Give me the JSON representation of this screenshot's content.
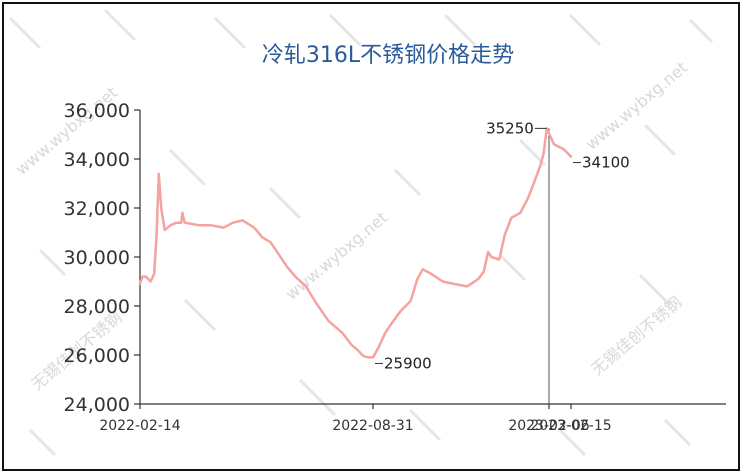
{
  "chart_data": {
    "type": "line",
    "title": "冷轧316L不锈钢价格走势",
    "xlabel": "",
    "ylabel": "",
    "ylim": [
      24000,
      36000
    ],
    "y_ticks": [
      "24,000",
      "26,000",
      "28,000",
      "30,000",
      "32,000",
      "34,000",
      "36,000"
    ],
    "x_ticks": [
      "2022-02-14",
      "2022-08-31",
      "2023-02-06",
      "2023-02-15"
    ],
    "grid": false,
    "line_color": "#f4a3a0",
    "series": [
      {
        "points": [
          [
            "2022-02-14",
            28900
          ],
          [
            "2022-02-16",
            29200
          ],
          [
            "2022-02-19",
            29200
          ],
          [
            "2022-02-23",
            29000
          ],
          [
            "2022-02-26",
            29300
          ],
          [
            "2022-02-28",
            30800
          ],
          [
            "2022-03-02",
            33400
          ],
          [
            "2022-03-04",
            32000
          ],
          [
            "2022-03-07",
            31100
          ],
          [
            "2022-03-12",
            31300
          ],
          [
            "2022-03-17",
            31400
          ],
          [
            "2022-03-21",
            31400
          ],
          [
            "2022-03-22",
            31800
          ],
          [
            "2022-03-24",
            31400
          ],
          [
            "2022-04-05",
            31300
          ],
          [
            "2022-04-15",
            31300
          ],
          [
            "2022-04-26",
            31200
          ],
          [
            "2022-05-04",
            31400
          ],
          [
            "2022-05-12",
            31500
          ],
          [
            "2022-05-22",
            31200
          ],
          [
            "2022-05-29",
            30800
          ],
          [
            "2022-06-05",
            30600
          ],
          [
            "2022-06-12",
            30100
          ],
          [
            "2022-06-19",
            29600
          ],
          [
            "2022-06-26",
            29200
          ],
          [
            "2022-07-05",
            28800
          ],
          [
            "2022-07-14",
            28100
          ],
          [
            "2022-07-24",
            27400
          ],
          [
            "2022-08-05",
            26900
          ],
          [
            "2022-08-13",
            26400
          ],
          [
            "2022-08-18",
            26200
          ],
          [
            "2022-08-23",
            25950
          ],
          [
            "2022-08-27",
            25900
          ],
          [
            "2022-08-31",
            25900
          ],
          [
            "2022-09-05",
            26300
          ],
          [
            "2022-09-11",
            26900
          ],
          [
            "2022-09-17",
            27300
          ],
          [
            "2022-09-25",
            27800
          ],
          [
            "2022-10-04",
            28200
          ],
          [
            "2022-10-10",
            29100
          ],
          [
            "2022-10-15",
            29500
          ],
          [
            "2022-10-23",
            29300
          ],
          [
            "2022-11-02",
            29000
          ],
          [
            "2022-11-12",
            28900
          ],
          [
            "2022-11-24",
            28800
          ],
          [
            "2022-12-04",
            29100
          ],
          [
            "2022-12-09",
            29400
          ],
          [
            "2022-12-13",
            30200
          ],
          [
            "2022-12-16",
            30000
          ],
          [
            "2022-12-23",
            29900
          ],
          [
            "2022-12-28",
            30900
          ],
          [
            "2023-01-03",
            31600
          ],
          [
            "2023-01-11",
            31800
          ],
          [
            "2023-01-18",
            32400
          ],
          [
            "2023-01-24",
            33100
          ],
          [
            "2023-01-29",
            33700
          ],
          [
            "2023-02-01",
            34200
          ],
          [
            "2023-02-04",
            35250
          ],
          [
            "2023-02-08",
            34600
          ],
          [
            "2023-02-12",
            34400
          ],
          [
            "2023-02-15",
            34100
          ]
        ]
      }
    ],
    "annotations": [
      {
        "label": "35250",
        "date": "2023-02-04",
        "value": 35250,
        "side": "left"
      },
      {
        "label": "34100",
        "date": "2023-02-15",
        "value": 34100,
        "side": "right"
      },
      {
        "label": "25900",
        "date": "2022-08-31",
        "value": 25900,
        "side": "right"
      }
    ],
    "guide_line_date": "2023-02-06"
  },
  "watermark": {
    "texts": [
      "www.wybxg.net",
      "无锡佳创不锈钢"
    ]
  }
}
